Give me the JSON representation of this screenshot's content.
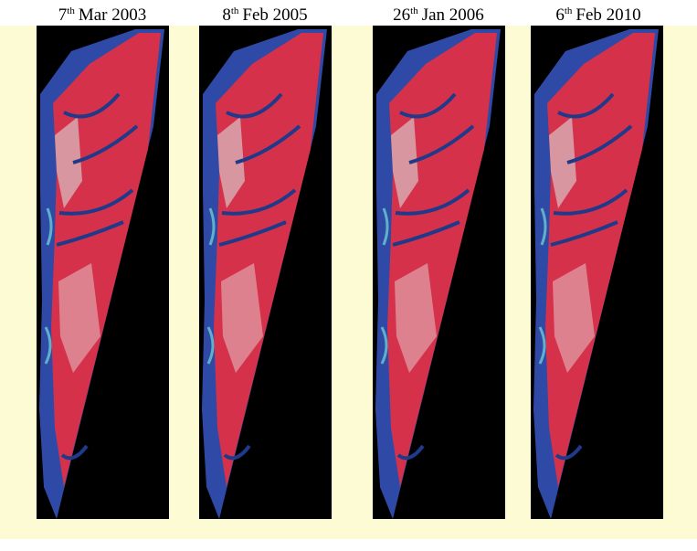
{
  "panels": [
    {
      "day": "7",
      "suffix": "th",
      "date": "Mar 2003"
    },
    {
      "day": "8",
      "suffix": "th",
      "date": "Feb 2005"
    },
    {
      "day": "26",
      "suffix": "th",
      "date": "Jan 2006"
    },
    {
      "day": "6",
      "suffix": "th",
      "date": "Feb 2010"
    }
  ]
}
